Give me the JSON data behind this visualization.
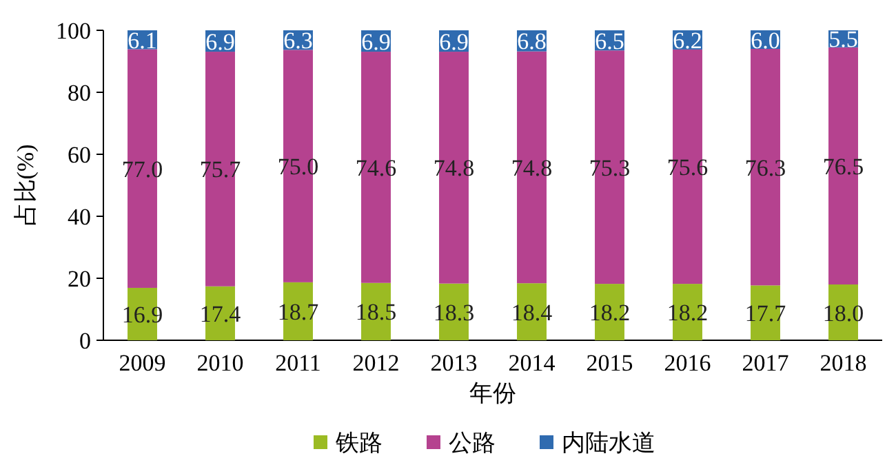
{
  "chart_data": {
    "type": "bar",
    "stacked": true,
    "xlabel": "年份",
    "ylabel": "占比(%)",
    "legend": "bottom",
    "ylim": [
      0,
      100
    ],
    "yticks": [
      0,
      20,
      40,
      60,
      80,
      100
    ],
    "categories": [
      "2009",
      "2010",
      "2011",
      "2012",
      "2013",
      "2014",
      "2015",
      "2016",
      "2017",
      "2018"
    ],
    "series": [
      {
        "name": "铁路",
        "color": "#9bbb23",
        "values": [
          16.9,
          17.4,
          18.7,
          18.5,
          18.3,
          18.4,
          18.2,
          18.2,
          17.7,
          18.0
        ],
        "value_labels": [
          "16.9",
          "17.4",
          "18.7",
          "18.5",
          "18.3",
          "18.4",
          "18.2",
          "18.2",
          "17.7",
          "18.0"
        ]
      },
      {
        "name": "公路",
        "color": "#b5428f",
        "values": [
          77.0,
          75.7,
          75.0,
          74.6,
          74.8,
          74.8,
          75.3,
          75.6,
          76.3,
          76.5
        ],
        "value_labels": [
          "77.0",
          "75.7",
          "75.0",
          "74.6",
          "74.8",
          "74.8",
          "75.3",
          "75.6",
          "76.3",
          "76.5"
        ]
      },
      {
        "name": "内陆水道",
        "color": "#2f6bb0",
        "values": [
          6.1,
          6.9,
          6.3,
          6.9,
          6.9,
          6.8,
          6.5,
          6.2,
          6.0,
          5.5
        ],
        "value_labels": [
          "6.1",
          "6.9",
          "6.3",
          "6.9",
          "6.9",
          "6.8",
          "6.5",
          "6.2",
          "6.0",
          "5.5"
        ]
      }
    ]
  }
}
